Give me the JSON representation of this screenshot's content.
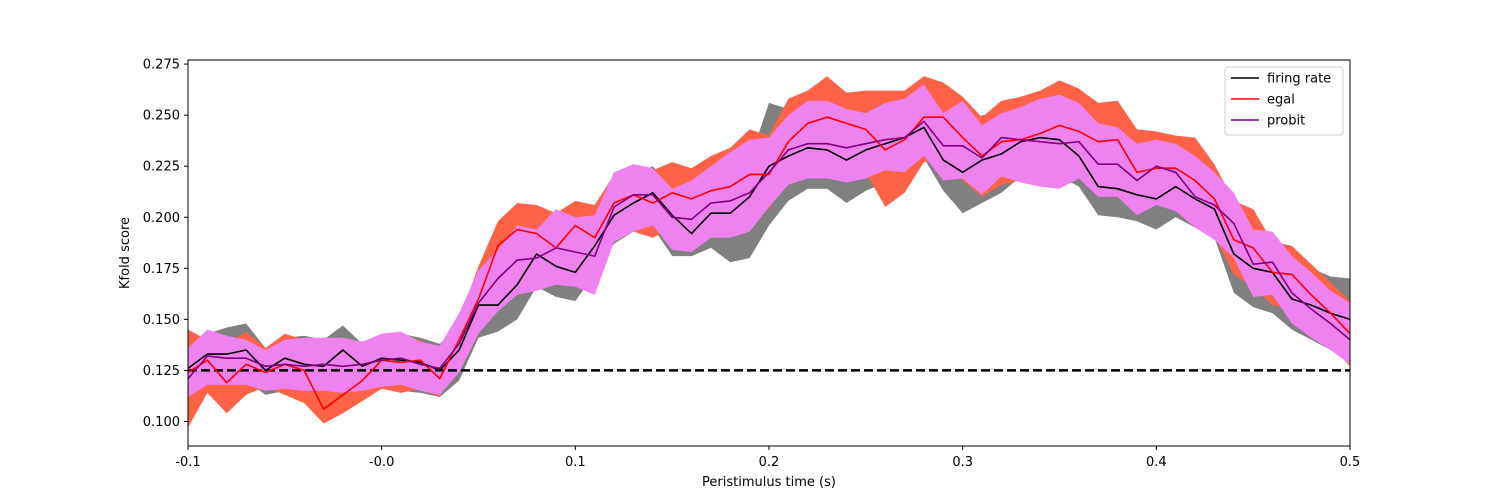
{
  "chart_data": {
    "type": "line",
    "xlabel": "Peristimulus time (s)",
    "ylabel": "Kfold score",
    "xlim": [
      -0.1,
      0.5
    ],
    "ylim": [
      0.088,
      0.277
    ],
    "xticks": [
      {
        "value": -0.1,
        "label": "-0.1"
      },
      {
        "value": 0.0,
        "label": "-0.0"
      },
      {
        "value": 0.1,
        "label": "0.1"
      },
      {
        "value": 0.2,
        "label": "0.2"
      },
      {
        "value": 0.3,
        "label": "0.3"
      },
      {
        "value": 0.4,
        "label": "0.4"
      },
      {
        "value": 0.5,
        "label": "0.5"
      }
    ],
    "yticks": [
      {
        "value": 0.1,
        "label": "0.100"
      },
      {
        "value": 0.125,
        "label": "0.125"
      },
      {
        "value": 0.15,
        "label": "0.150"
      },
      {
        "value": 0.175,
        "label": "0.175"
      },
      {
        "value": 0.2,
        "label": "0.200"
      },
      {
        "value": 0.225,
        "label": "0.225"
      },
      {
        "value": 0.25,
        "label": "0.250"
      },
      {
        "value": 0.275,
        "label": "0.275"
      }
    ],
    "grid": false,
    "legend_position": "top-right",
    "chance_level": 0.125,
    "x": [
      -0.1,
      -0.09,
      -0.08,
      -0.07,
      -0.06,
      -0.05,
      -0.04,
      -0.03,
      -0.02,
      -0.01,
      0.0,
      0.01,
      0.02,
      0.03,
      0.04,
      0.05,
      0.06,
      0.07,
      0.08,
      0.09,
      0.1,
      0.11,
      0.12,
      0.13,
      0.14,
      0.15,
      0.16,
      0.17,
      0.18,
      0.19,
      0.2,
      0.21,
      0.22,
      0.23,
      0.24,
      0.25,
      0.26,
      0.27,
      0.28,
      0.29,
      0.3,
      0.31,
      0.32,
      0.33,
      0.34,
      0.35,
      0.36,
      0.37,
      0.38,
      0.39,
      0.4,
      0.41,
      0.42,
      0.43,
      0.44,
      0.45,
      0.46,
      0.47,
      0.48,
      0.49,
      0.5
    ],
    "series": [
      {
        "name": "firing rate",
        "color": "#000000",
        "band_color": "#808080",
        "values": [
          0.126,
          0.133,
          0.133,
          0.135,
          0.125,
          0.131,
          0.128,
          0.127,
          0.135,
          0.127,
          0.131,
          0.13,
          0.129,
          0.125,
          0.135,
          0.157,
          0.157,
          0.167,
          0.182,
          0.176,
          0.173,
          0.186,
          0.201,
          0.207,
          0.212,
          0.201,
          0.192,
          0.202,
          0.202,
          0.21,
          0.225,
          0.23,
          0.234,
          0.233,
          0.228,
          0.233,
          0.236,
          0.239,
          0.244,
          0.228,
          0.222,
          0.228,
          0.231,
          0.237,
          0.239,
          0.238,
          0.23,
          0.215,
          0.214,
          0.211,
          0.209,
          0.215,
          0.209,
          0.204,
          0.182,
          0.175,
          0.173,
          0.16,
          0.157,
          0.153,
          0.15
        ],
        "lower": [
          0.112,
          0.117,
          0.118,
          0.12,
          0.113,
          0.115,
          0.114,
          0.112,
          0.118,
          0.113,
          0.116,
          0.115,
          0.114,
          0.112,
          0.12,
          0.141,
          0.144,
          0.15,
          0.166,
          0.161,
          0.159,
          0.172,
          0.187,
          0.193,
          0.195,
          0.181,
          0.181,
          0.185,
          0.178,
          0.18,
          0.196,
          0.208,
          0.214,
          0.214,
          0.207,
          0.213,
          0.217,
          0.223,
          0.229,
          0.213,
          0.202,
          0.207,
          0.212,
          0.22,
          0.222,
          0.22,
          0.215,
          0.201,
          0.2,
          0.198,
          0.194,
          0.2,
          0.195,
          0.19,
          0.163,
          0.156,
          0.153,
          0.145,
          0.14,
          0.135,
          0.132
        ],
        "upper": [
          0.133,
          0.143,
          0.146,
          0.148,
          0.136,
          0.141,
          0.142,
          0.14,
          0.147,
          0.138,
          0.143,
          0.143,
          0.141,
          0.138,
          0.148,
          0.171,
          0.176,
          0.182,
          0.195,
          0.193,
          0.191,
          0.201,
          0.215,
          0.221,
          0.225,
          0.215,
          0.206,
          0.217,
          0.22,
          0.228,
          0.256,
          0.253,
          0.253,
          0.253,
          0.248,
          0.255,
          0.257,
          0.26,
          0.262,
          0.249,
          0.241,
          0.25,
          0.25,
          0.257,
          0.259,
          0.26,
          0.248,
          0.235,
          0.235,
          0.234,
          0.231,
          0.236,
          0.23,
          0.225,
          0.2,
          0.193,
          0.192,
          0.18,
          0.175,
          0.171,
          0.17
        ]
      },
      {
        "name": "egal",
        "color": "#ff0000",
        "band_color": "#ff6347",
        "values": [
          0.124,
          0.13,
          0.119,
          0.128,
          0.124,
          0.128,
          0.125,
          0.106,
          0.113,
          0.12,
          0.13,
          0.129,
          0.13,
          0.121,
          0.14,
          0.16,
          0.186,
          0.194,
          0.192,
          0.185,
          0.196,
          0.19,
          0.207,
          0.211,
          0.207,
          0.212,
          0.209,
          0.213,
          0.215,
          0.221,
          0.221,
          0.237,
          0.246,
          0.249,
          0.246,
          0.243,
          0.233,
          0.238,
          0.249,
          0.249,
          0.239,
          0.23,
          0.237,
          0.238,
          0.241,
          0.245,
          0.242,
          0.237,
          0.238,
          0.222,
          0.224,
          0.224,
          0.218,
          0.209,
          0.189,
          0.185,
          0.173,
          0.172,
          0.162,
          0.153,
          0.143
        ],
        "lower": [
          0.097,
          0.114,
          0.104,
          0.113,
          0.117,
          0.113,
          0.109,
          0.099,
          0.104,
          0.11,
          0.116,
          0.114,
          0.116,
          0.112,
          0.13,
          0.149,
          0.166,
          0.178,
          0.176,
          0.17,
          0.177,
          0.172,
          0.188,
          0.193,
          0.19,
          0.195,
          0.192,
          0.196,
          0.199,
          0.203,
          0.204,
          0.22,
          0.225,
          0.225,
          0.221,
          0.222,
          0.205,
          0.212,
          0.227,
          0.229,
          0.218,
          0.21,
          0.216,
          0.218,
          0.22,
          0.223,
          0.222,
          0.217,
          0.218,
          0.203,
          0.206,
          0.205,
          0.199,
          0.191,
          0.172,
          0.166,
          0.157,
          0.155,
          0.145,
          0.137,
          0.127
        ],
        "upper": [
          0.145,
          0.14,
          0.138,
          0.144,
          0.136,
          0.143,
          0.14,
          0.118,
          0.124,
          0.132,
          0.14,
          0.139,
          0.14,
          0.133,
          0.15,
          0.176,
          0.198,
          0.207,
          0.206,
          0.202,
          0.208,
          0.206,
          0.221,
          0.225,
          0.223,
          0.227,
          0.224,
          0.23,
          0.234,
          0.243,
          0.24,
          0.258,
          0.262,
          0.269,
          0.261,
          0.262,
          0.262,
          0.262,
          0.269,
          0.266,
          0.259,
          0.249,
          0.257,
          0.259,
          0.262,
          0.267,
          0.263,
          0.256,
          0.257,
          0.243,
          0.242,
          0.24,
          0.239,
          0.226,
          0.208,
          0.204,
          0.188,
          0.186,
          0.177,
          0.168,
          0.159
        ]
      },
      {
        "name": "probit",
        "color": "#800080",
        "band_color": "#ee82ee",
        "values": [
          0.121,
          0.132,
          0.131,
          0.131,
          0.127,
          0.128,
          0.127,
          0.128,
          0.127,
          0.128,
          0.13,
          0.131,
          0.128,
          0.126,
          0.138,
          0.158,
          0.17,
          0.179,
          0.18,
          0.185,
          0.183,
          0.181,
          0.205,
          0.211,
          0.211,
          0.2,
          0.199,
          0.207,
          0.208,
          0.212,
          0.222,
          0.233,
          0.236,
          0.236,
          0.234,
          0.236,
          0.238,
          0.239,
          0.247,
          0.235,
          0.235,
          0.229,
          0.239,
          0.238,
          0.237,
          0.236,
          0.237,
          0.226,
          0.226,
          0.218,
          0.225,
          0.222,
          0.21,
          0.206,
          0.197,
          0.177,
          0.178,
          0.163,
          0.155,
          0.148,
          0.14
        ],
        "lower": [
          0.112,
          0.118,
          0.118,
          0.118,
          0.115,
          0.116,
          0.115,
          0.115,
          0.114,
          0.115,
          0.117,
          0.118,
          0.115,
          0.113,
          0.124,
          0.143,
          0.154,
          0.162,
          0.164,
          0.167,
          0.166,
          0.162,
          0.188,
          0.193,
          0.196,
          0.184,
          0.183,
          0.19,
          0.19,
          0.193,
          0.205,
          0.216,
          0.219,
          0.219,
          0.217,
          0.219,
          0.223,
          0.222,
          0.23,
          0.218,
          0.219,
          0.211,
          0.22,
          0.217,
          0.215,
          0.214,
          0.219,
          0.21,
          0.21,
          0.201,
          0.206,
          0.203,
          0.195,
          0.189,
          0.18,
          0.161,
          0.162,
          0.148,
          0.141,
          0.135,
          0.128
        ],
        "upper": [
          0.136,
          0.145,
          0.142,
          0.14,
          0.135,
          0.14,
          0.141,
          0.141,
          0.141,
          0.139,
          0.143,
          0.144,
          0.139,
          0.137,
          0.153,
          0.174,
          0.184,
          0.196,
          0.194,
          0.204,
          0.2,
          0.201,
          0.222,
          0.226,
          0.224,
          0.214,
          0.218,
          0.225,
          0.232,
          0.238,
          0.239,
          0.25,
          0.257,
          0.257,
          0.253,
          0.251,
          0.256,
          0.258,
          0.265,
          0.251,
          0.257,
          0.245,
          0.251,
          0.254,
          0.258,
          0.26,
          0.256,
          0.246,
          0.244,
          0.236,
          0.238,
          0.236,
          0.23,
          0.222,
          0.212,
          0.194,
          0.193,
          0.181,
          0.173,
          0.164,
          0.158
        ]
      }
    ]
  }
}
